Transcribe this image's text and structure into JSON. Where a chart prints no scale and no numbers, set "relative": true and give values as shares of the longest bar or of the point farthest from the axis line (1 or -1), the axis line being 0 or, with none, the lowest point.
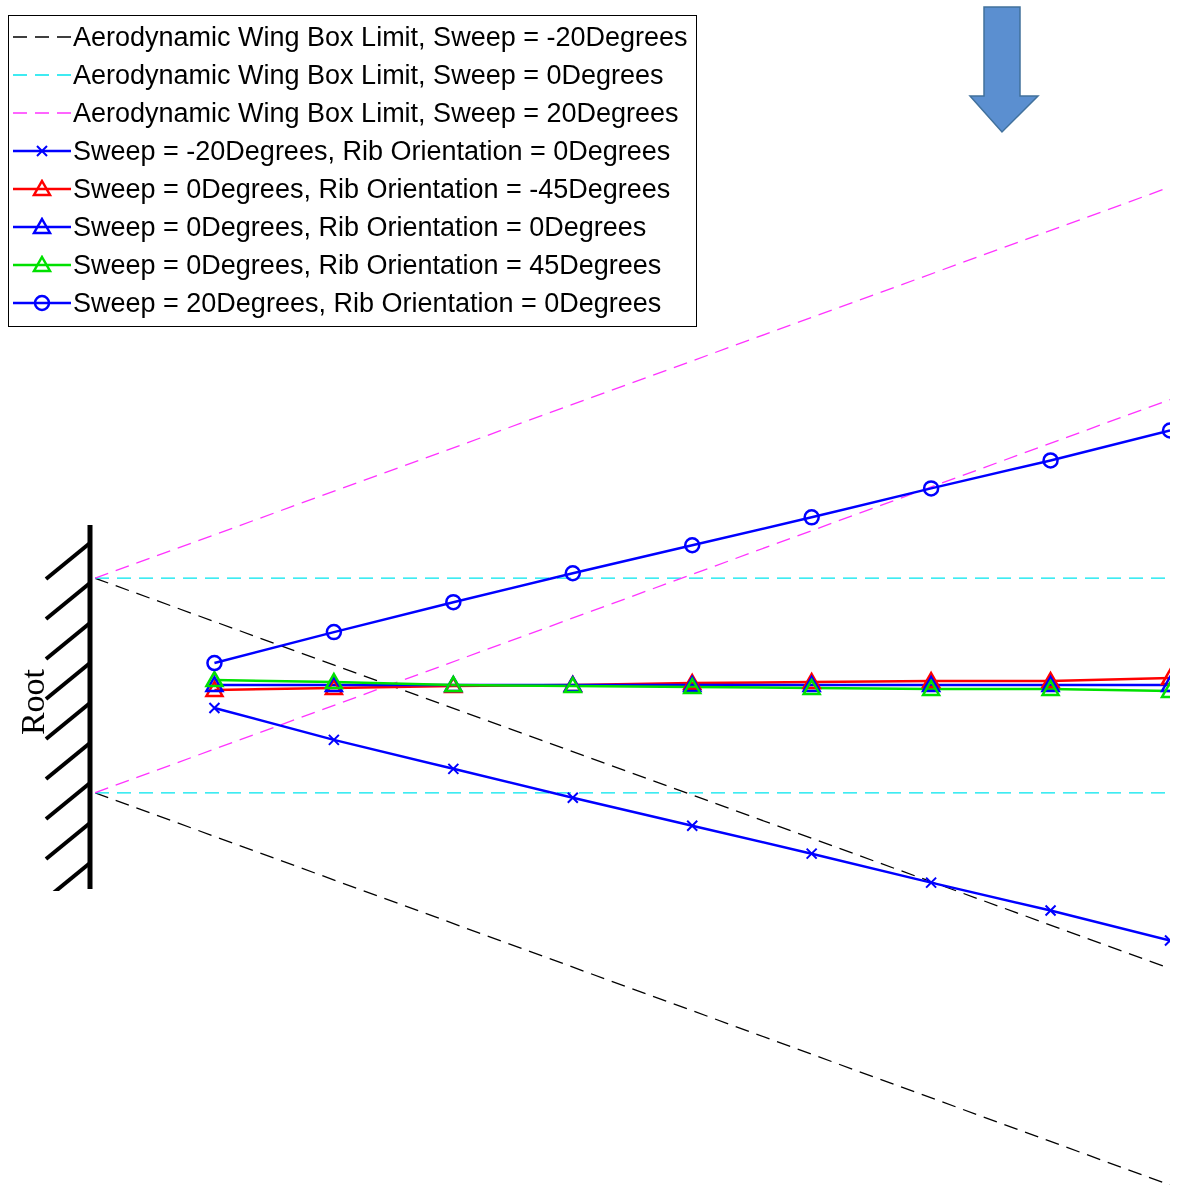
{
  "chart_data": {
    "type": "line",
    "relative": true,
    "tick_labels": false,
    "grid": false,
    "legend": "top left",
    "categories": [
      null,
      null,
      null,
      null,
      null,
      null,
      null,
      null,
      null,
      null
    ],
    "annotations": [
      "Root"
    ],
    "series": [
      {
        "name": "Aerodynamic Wing Box Limit, Sweep = -20Degrees",
        "color": "#000000",
        "line_style": "dashed",
        "marker": "none",
        "values": [
          0.608,
          null,
          null,
          null,
          null,
          null,
          null,
          null,
          null,
          0.217
        ]
      },
      {
        "color": "#000000",
        "line_style": "dashed",
        "marker": "none",
        "values": [
          0.393,
          null,
          null,
          null,
          null,
          null,
          null,
          null,
          null,
          0
        ]
      },
      {
        "name": "Aerodynamic Wing Box Limit, Sweep = 0Degrees",
        "color": "#00e5ee",
        "line_style": "dashed",
        "marker": "none",
        "values": [
          0.608,
          null,
          null,
          null,
          null,
          null,
          null,
          null,
          null,
          0.608
        ]
      },
      {
        "color": "#00e5ee",
        "line_style": "dashed",
        "marker": "none",
        "values": [
          0.393,
          null,
          null,
          null,
          null,
          null,
          null,
          null,
          null,
          0.393
        ]
      },
      {
        "name": "Aerodynamic Wing Box Limit, Sweep = 20Degrees",
        "color": "#ff33ff",
        "line_style": "dashed",
        "marker": "none",
        "values": [
          0.608,
          null,
          null,
          null,
          null,
          null,
          null,
          null,
          null,
          1
        ]
      },
      {
        "color": "#ff33ff",
        "line_style": "dashed",
        "marker": "none",
        "values": [
          0.393,
          null,
          null,
          null,
          null,
          null,
          null,
          null,
          null,
          0.787
        ]
      },
      {
        "name": "Sweep = -20Degrees, Rib Orientation = 0Degrees",
        "color": "#0000ff",
        "line_style": "solid",
        "marker": "cross",
        "values": [
          null,
          0.478,
          0.446,
          0.417,
          0.388,
          0.36,
          0.332,
          0.303,
          0.275,
          0.245
        ]
      },
      {
        "name": "Sweep = 0Degrees, Rib Orientation = -45Degrees",
        "color": "#ff0000",
        "line_style": "solid",
        "marker": "triangle",
        "values": [
          null,
          0.496,
          0.498,
          0.5,
          0.501,
          0.503,
          0.504,
          0.505,
          0.505,
          0.508
        ]
      },
      {
        "name": "Sweep = 0Degrees, Rib Orientation = 0Degrees",
        "color": "#0000ff",
        "line_style": "solid",
        "marker": "triangle",
        "values": [
          null,
          0.501,
          0.501,
          0.501,
          0.501,
          0.501,
          0.501,
          0.501,
          0.501,
          0.501
        ]
      },
      {
        "name": "Sweep = 0Degrees, Rib Orientation = 45Degrees",
        "color": "#00e000",
        "line_style": "solid",
        "marker": "triangle",
        "values": [
          null,
          0.506,
          0.504,
          0.501,
          0.5,
          0.499,
          0.498,
          0.497,
          0.497,
          0.495
        ]
      },
      {
        "name": "Sweep = 20Degrees, Rib Orientation = 0Degrees",
        "color": "#0000ff",
        "line_style": "solid",
        "marker": "circle",
        "values": [
          null,
          0.523,
          0.554,
          0.584,
          0.613,
          0.641,
          0.669,
          0.698,
          0.726,
          0.756
        ]
      }
    ]
  }
}
